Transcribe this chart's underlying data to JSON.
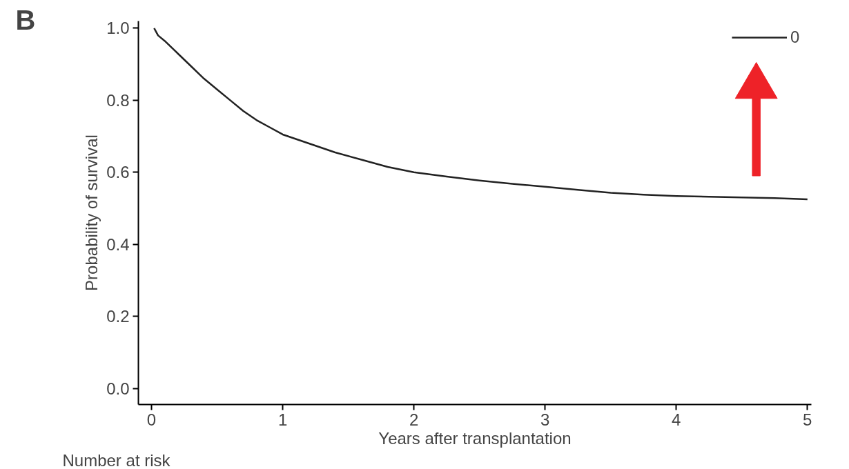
{
  "chart_data": {
    "type": "line",
    "title": "B",
    "xlabel": "Years after transplantation",
    "ylabel": "Probability of survival",
    "series": [
      {
        "name": "0",
        "color": "#222222",
        "x": [
          0.02,
          0.05,
          0.1,
          0.2,
          0.3,
          0.4,
          0.5,
          0.6,
          0.7,
          0.8,
          0.9,
          1.0,
          1.2,
          1.4,
          1.6,
          1.8,
          2.0,
          2.25,
          2.5,
          2.75,
          3.0,
          3.25,
          3.5,
          3.75,
          4.0,
          4.25,
          4.5,
          4.75,
          5.0
        ],
        "values": [
          1.0,
          0.98,
          0.965,
          0.93,
          0.895,
          0.86,
          0.83,
          0.8,
          0.77,
          0.745,
          0.725,
          0.705,
          0.68,
          0.655,
          0.635,
          0.615,
          0.6,
          0.588,
          0.577,
          0.568,
          0.56,
          0.551,
          0.543,
          0.538,
          0.534,
          0.532,
          0.53,
          0.528,
          0.525
        ]
      }
    ],
    "xlim": [
      -0.1,
      5.03
    ],
    "ylim": [
      -0.045,
      1.02
    ],
    "xticks": [
      0,
      1,
      2,
      3,
      4,
      5
    ],
    "yticks": [
      {
        "value": 0,
        "label": "0.0"
      },
      {
        "value": 0.2,
        "label": "0.2"
      },
      {
        "value": 0.4,
        "label": "0.4"
      },
      {
        "value": 0.6,
        "label": "0.6"
      },
      {
        "value": 0.8,
        "label": "0.8"
      },
      {
        "value": 1.0,
        "label": "1.0"
      }
    ],
    "grid": false,
    "legend": "top right",
    "line_style": "solid",
    "marker": "none",
    "annotations": [
      "Number at risk"
    ]
  }
}
